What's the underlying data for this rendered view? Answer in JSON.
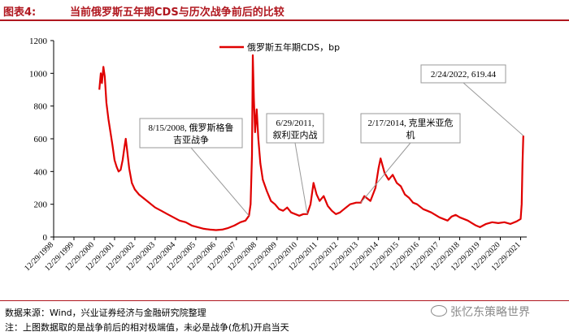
{
  "figure": {
    "number": "图表4:",
    "title": "当前俄罗斯五年期CDS与历次战争前后的比较"
  },
  "source_text": "数据来源：Wind，兴业证券经济与金融研究院整理",
  "note_text": "注：上图数据取的是战争前后的相对极端值，未必是战争(危机)开启当天",
  "watermark": "张忆东策略世界",
  "chart_data": {
    "type": "line",
    "ylim": [
      0,
      1200
    ],
    "yticks": [
      0,
      200,
      400,
      600,
      800,
      1000,
      1200
    ],
    "xlim": [
      1999.0,
      2022.3
    ],
    "xtick_labels": [
      "12/29/1998",
      "12/29/1999",
      "12/29/2000",
      "12/29/2001",
      "12/29/2002",
      "12/29/2003",
      "12/29/2004",
      "12/29/2005",
      "12/29/2006",
      "12/29/2007",
      "12/29/2008",
      "12/29/2009",
      "12/29/2010",
      "12/29/2011",
      "12/29/2012",
      "12/29/2013",
      "12/29/2014",
      "12/29/2015",
      "12/29/2016",
      "12/29/2017",
      "12/29/2018",
      "12/29/2019",
      "12/29/2020",
      "12/29/2021"
    ],
    "series": [
      {
        "name": "俄罗斯五年期CDS，bp",
        "color": "#e00000",
        "points": [
          [
            2001.25,
            900
          ],
          [
            2001.32,
            1000
          ],
          [
            2001.38,
            940
          ],
          [
            2001.45,
            1040
          ],
          [
            2001.52,
            980
          ],
          [
            2001.6,
            820
          ],
          [
            2001.7,
            720
          ],
          [
            2001.8,
            640
          ],
          [
            2001.9,
            560
          ],
          [
            2002.0,
            470
          ],
          [
            2002.1,
            430
          ],
          [
            2002.2,
            400
          ],
          [
            2002.3,
            410
          ],
          [
            2002.4,
            470
          ],
          [
            2002.5,
            560
          ],
          [
            2002.55,
            600
          ],
          [
            2002.62,
            530
          ],
          [
            2002.72,
            420
          ],
          [
            2002.85,
            330
          ],
          [
            2003.0,
            290
          ],
          [
            2003.2,
            260
          ],
          [
            2003.4,
            240
          ],
          [
            2003.6,
            220
          ],
          [
            2003.8,
            200
          ],
          [
            2004.0,
            180
          ],
          [
            2004.3,
            160
          ],
          [
            2004.6,
            140
          ],
          [
            2004.9,
            120
          ],
          [
            2005.2,
            100
          ],
          [
            2005.5,
            90
          ],
          [
            2005.8,
            70
          ],
          [
            2006.1,
            60
          ],
          [
            2006.4,
            50
          ],
          [
            2006.7,
            45
          ],
          [
            2007.0,
            42
          ],
          [
            2007.3,
            45
          ],
          [
            2007.6,
            55
          ],
          [
            2007.9,
            70
          ],
          [
            2008.2,
            90
          ],
          [
            2008.45,
            100
          ],
          [
            2008.62,
            130
          ],
          [
            2008.7,
            200
          ],
          [
            2008.77,
            500
          ],
          [
            2008.81,
            1110
          ],
          [
            2008.86,
            850
          ],
          [
            2008.92,
            640
          ],
          [
            2009.0,
            780
          ],
          [
            2009.08,
            600
          ],
          [
            2009.18,
            450
          ],
          [
            2009.3,
            350
          ],
          [
            2009.5,
            280
          ],
          [
            2009.7,
            220
          ],
          [
            2009.9,
            200
          ],
          [
            2010.1,
            170
          ],
          [
            2010.3,
            160
          ],
          [
            2010.5,
            180
          ],
          [
            2010.7,
            150
          ],
          [
            2010.9,
            140
          ],
          [
            2011.1,
            130
          ],
          [
            2011.3,
            140
          ],
          [
            2011.49,
            140
          ],
          [
            2011.65,
            200
          ],
          [
            2011.8,
            330
          ],
          [
            2011.95,
            260
          ],
          [
            2012.1,
            220
          ],
          [
            2012.3,
            250
          ],
          [
            2012.5,
            190
          ],
          [
            2012.7,
            160
          ],
          [
            2012.9,
            140
          ],
          [
            2013.1,
            150
          ],
          [
            2013.3,
            170
          ],
          [
            2013.6,
            200
          ],
          [
            2013.9,
            210
          ],
          [
            2014.13,
            210
          ],
          [
            2014.3,
            250
          ],
          [
            2014.6,
            220
          ],
          [
            2014.85,
            300
          ],
          [
            2015.0,
            420
          ],
          [
            2015.1,
            480
          ],
          [
            2015.3,
            390
          ],
          [
            2015.5,
            350
          ],
          [
            2015.7,
            380
          ],
          [
            2015.9,
            330
          ],
          [
            2016.1,
            310
          ],
          [
            2016.3,
            260
          ],
          [
            2016.5,
            240
          ],
          [
            2016.7,
            210
          ],
          [
            2016.9,
            200
          ],
          [
            2017.0,
            190
          ],
          [
            2017.2,
            170
          ],
          [
            2017.4,
            160
          ],
          [
            2017.6,
            150
          ],
          [
            2017.8,
            135
          ],
          [
            2018.0,
            120
          ],
          [
            2018.2,
            110
          ],
          [
            2018.4,
            100
          ],
          [
            2018.6,
            125
          ],
          [
            2018.8,
            135
          ],
          [
            2019.0,
            120
          ],
          [
            2019.2,
            110
          ],
          [
            2019.4,
            100
          ],
          [
            2019.6,
            85
          ],
          [
            2019.8,
            70
          ],
          [
            2020.0,
            60
          ],
          [
            2020.3,
            80
          ],
          [
            2020.6,
            90
          ],
          [
            2020.9,
            85
          ],
          [
            2021.2,
            90
          ],
          [
            2021.5,
            80
          ],
          [
            2021.8,
            95
          ],
          [
            2022.0,
            110
          ],
          [
            2022.05,
            200
          ],
          [
            2022.09,
            450
          ],
          [
            2022.13,
            619.44
          ]
        ]
      }
    ],
    "annotations": [
      {
        "id": "georgia",
        "lines": [
          "8/15/2008, 俄罗斯格鲁",
          "吉亚战争"
        ],
        "x": 2008.62,
        "y": 130
      },
      {
        "id": "libya",
        "lines": [
          "6/29/2011,",
          "叙利亚内战"
        ],
        "x": 2011.49,
        "y": 140
      },
      {
        "id": "crimea",
        "lines": [
          "2/17/2014, 克里米亚危",
          "机"
        ],
        "x": 2014.13,
        "y": 210
      },
      {
        "id": "current",
        "lines": [
          "2/24/2022, 619.44"
        ],
        "x": 2022.13,
        "y": 619.44
      }
    ]
  }
}
